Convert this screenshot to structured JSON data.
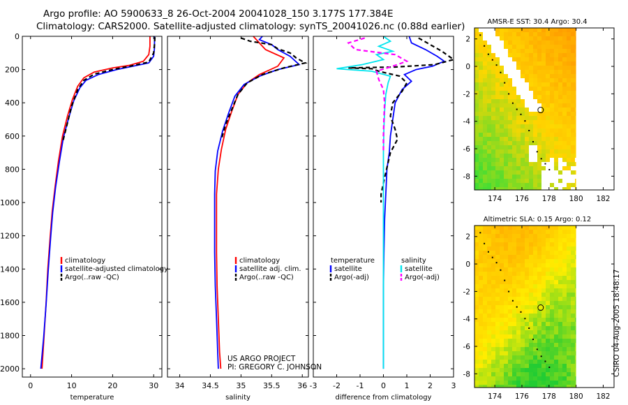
{
  "header": {
    "line1": "Argo profile: AO 5900633_8 26-Oct-2004 20041028_150 3.177S 177.384E",
    "line2": "Climatology: CARS2000. Satellite-adjusted climatology: synTS_20041026.nc (0.88d earlier)"
  },
  "credit": {
    "project": "US ARGO PROJECT",
    "pi": "PI: GREGORY C. JOHNSON"
  },
  "side_label": "CSIRO 04-Aug-2005 18:48:17",
  "colors": {
    "climatology": "#ff0000",
    "satellite": "#0000ff",
    "argo": "#000000",
    "salinity_satellite": "#00e5ee",
    "salinity_argo": "#ff00ff"
  },
  "chart_data": [
    {
      "type": "line",
      "id": "temperature",
      "xlabel": "temperature",
      "ylabel": "",
      "xlim": [
        -2,
        32
      ],
      "ylim": [
        2050,
        0
      ],
      "xticks": [
        0,
        10,
        20,
        30
      ],
      "yticks": [
        0,
        200,
        400,
        600,
        800,
        1000,
        1200,
        1400,
        1600,
        1800,
        2000
      ],
      "legend": [
        "climatology",
        "satellite-adjusted climatology",
        "Argo(..raw -QC)"
      ],
      "series": [
        {
          "name": "climatology",
          "color": "#ff0000",
          "dash": false,
          "points": [
            [
              29.1,
              0
            ],
            [
              29.1,
              60
            ],
            [
              28.8,
              110
            ],
            [
              27.5,
              150
            ],
            [
              24,
              175
            ],
            [
              20,
              190
            ],
            [
              15.5,
              215
            ],
            [
              13,
              250
            ],
            [
              11.5,
              300
            ],
            [
              10.2,
              380
            ],
            [
              9,
              480
            ],
            [
              7.8,
              600
            ],
            [
              6.8,
              750
            ],
            [
              6,
              900
            ],
            [
              5.3,
              1050
            ],
            [
              4.8,
              1200
            ],
            [
              4.2,
              1400
            ],
            [
              3.8,
              1600
            ],
            [
              3.3,
              1800
            ],
            [
              2.8,
              2000
            ]
          ]
        },
        {
          "name": "satellite-adjusted climatology",
          "color": "#0000ff",
          "dash": false,
          "points": [
            [
              30.2,
              0
            ],
            [
              30.2,
              70
            ],
            [
              30,
              120
            ],
            [
              28.8,
              160
            ],
            [
              25,
              180
            ],
            [
              21,
              200
            ],
            [
              16.5,
              230
            ],
            [
              13.5,
              265
            ],
            [
              12,
              310
            ],
            [
              10.5,
              390
            ],
            [
              9.3,
              490
            ],
            [
              8,
              610
            ],
            [
              7,
              760
            ],
            [
              6.1,
              910
            ],
            [
              5.4,
              1060
            ],
            [
              4.9,
              1210
            ],
            [
              4.3,
              1410
            ],
            [
              3.8,
              1610
            ],
            [
              3.2,
              1810
            ],
            [
              2.5,
              2000
            ]
          ]
        },
        {
          "name": "Argo(..raw -QC)",
          "color": "#000000",
          "dash": true,
          "points": [
            [
              30.3,
              5
            ],
            [
              30.2,
              50
            ],
            [
              30,
              100
            ],
            [
              28.8,
              155
            ],
            [
              24.5,
              178
            ],
            [
              20,
              200
            ],
            [
              15.5,
              228
            ],
            [
              13,
              265
            ],
            [
              11.5,
              320
            ],
            [
              10,
              420
            ],
            [
              9,
              520
            ],
            [
              7.8,
              640
            ]
          ]
        }
      ]
    },
    {
      "type": "line",
      "id": "salinity",
      "xlabel": "salinity",
      "ylabel": "",
      "xlim": [
        33.8,
        36.1
      ],
      "ylim": [
        2050,
        0
      ],
      "xticks": [
        34,
        34.5,
        35,
        35.5,
        36
      ],
      "legend": [
        "climatology",
        "satellite adj. clim.",
        "Argo(..raw -QC)"
      ],
      "series": [
        {
          "name": "climatology",
          "color": "#ff0000",
          "dash": false,
          "points": [
            [
              35.2,
              0
            ],
            [
              35.3,
              40
            ],
            [
              35.4,
              80
            ],
            [
              35.7,
              130
            ],
            [
              35.6,
              180
            ],
            [
              35.3,
              230
            ],
            [
              35.1,
              280
            ],
            [
              34.95,
              350
            ],
            [
              34.85,
              450
            ],
            [
              34.75,
              560
            ],
            [
              34.68,
              680
            ],
            [
              34.63,
              800
            ],
            [
              34.6,
              950
            ],
            [
              34.6,
              1100
            ],
            [
              34.6,
              1300
            ],
            [
              34.61,
              1500
            ],
            [
              34.63,
              1700
            ],
            [
              34.65,
              1900
            ],
            [
              34.67,
              2000
            ]
          ]
        },
        {
          "name": "satellite adj. clim.",
          "color": "#0000ff",
          "dash": false,
          "points": [
            [
              35.35,
              0
            ],
            [
              35.3,
              20
            ],
            [
              35.5,
              50
            ],
            [
              35.6,
              80
            ],
            [
              35.8,
              120
            ],
            [
              35.95,
              170
            ],
            [
              35.6,
              200
            ],
            [
              35.3,
              240
            ],
            [
              35.05,
              290
            ],
            [
              34.9,
              360
            ],
            [
              34.8,
              460
            ],
            [
              34.7,
              570
            ],
            [
              34.62,
              690
            ],
            [
              34.58,
              810
            ],
            [
              34.57,
              950
            ],
            [
              34.57,
              1100
            ],
            [
              34.57,
              1300
            ],
            [
              34.58,
              1500
            ],
            [
              34.6,
              1700
            ],
            [
              34.62,
              1900
            ],
            [
              34.63,
              2000
            ]
          ]
        },
        {
          "name": "Argo(..raw -QC)",
          "color": "#000000",
          "dash": true,
          "points": [
            [
              35.0,
              10
            ],
            [
              35.15,
              30
            ],
            [
              35.5,
              50
            ],
            [
              35.6,
              75
            ],
            [
              35.8,
              100
            ],
            [
              35.9,
              130
            ],
            [
              36.05,
              160
            ],
            [
              35.7,
              190
            ],
            [
              35.35,
              230
            ],
            [
              35.1,
              280
            ],
            [
              34.95,
              350
            ],
            [
              34.85,
              440
            ],
            [
              34.75,
              530
            ],
            [
              34.68,
              620
            ]
          ]
        }
      ]
    },
    {
      "type": "line",
      "id": "difference",
      "xlabel": "difference from climatology",
      "ylabel": "",
      "xlim": [
        -3,
        3
      ],
      "ylim": [
        2050,
        0
      ],
      "xticks": [
        -3,
        -2,
        -1,
        0,
        1,
        2,
        3
      ],
      "legend": [
        "temperature",
        "satellite",
        "Argo(-adj)",
        "salinity",
        "satellite",
        "Argo(-adj)"
      ],
      "series": [
        {
          "name": "temperature satellite",
          "color": "#0000ff",
          "dash": false,
          "points": [
            [
              1.1,
              0
            ],
            [
              1.2,
              40
            ],
            [
              1.8,
              80
            ],
            [
              2.3,
              120
            ],
            [
              2.6,
              150
            ],
            [
              2.1,
              180
            ],
            [
              1.4,
              200
            ],
            [
              0.9,
              230
            ],
            [
              1.2,
              270
            ],
            [
              0.8,
              320
            ],
            [
              0.5,
              400
            ],
            [
              0.4,
              500
            ],
            [
              0.3,
              600
            ],
            [
              0.25,
              700
            ],
            [
              0.15,
              800
            ],
            [
              0.1,
              950
            ],
            [
              0.05,
              1100
            ],
            [
              0.02,
              1300
            ],
            [
              0,
              1500
            ],
            [
              0,
              1700
            ],
            [
              0,
              1900
            ],
            [
              0,
              2000
            ]
          ]
        },
        {
          "name": "temperature Argo(-adj)",
          "color": "#000000",
          "dash": true,
          "points": [
            [
              1.5,
              10
            ],
            [
              2.0,
              50
            ],
            [
              2.5,
              90
            ],
            [
              3,
              140
            ],
            [
              2.2,
              170
            ],
            [
              0.5,
              185
            ],
            [
              -1.5,
              190
            ],
            [
              -0.5,
              195
            ],
            [
              -0.2,
              210
            ],
            [
              0.7,
              240
            ],
            [
              1,
              280
            ],
            [
              0.8,
              330
            ],
            [
              0.4,
              400
            ],
            [
              0.3,
              480
            ],
            [
              0.5,
              560
            ],
            [
              0.6,
              620
            ],
            [
              0.3,
              700
            ],
            [
              0.2,
              760
            ],
            [
              0.05,
              850
            ],
            [
              -0.1,
              950
            ],
            [
              -0.1,
              1000
            ]
          ]
        },
        {
          "name": "salinity satellite",
          "color": "#00e5ee",
          "dash": false,
          "points": [
            [
              0,
              0
            ],
            [
              0.3,
              30
            ],
            [
              -0.2,
              60
            ],
            [
              0.4,
              90
            ],
            [
              -0.3,
              110
            ],
            [
              0,
              140
            ],
            [
              -0.9,
              170
            ],
            [
              -2,
              195
            ],
            [
              -0.5,
              210
            ],
            [
              0.3,
              240
            ],
            [
              0.2,
              280
            ],
            [
              0.1,
              350
            ],
            [
              0.05,
              450
            ],
            [
              0.02,
              550
            ],
            [
              0,
              700
            ],
            [
              0,
              900
            ],
            [
              0,
              1100
            ],
            [
              0,
              1300
            ],
            [
              0,
              1500
            ],
            [
              0,
              1700
            ],
            [
              0,
              1900
            ],
            [
              0,
              2000
            ]
          ]
        },
        {
          "name": "salinity Argo(-adj)",
          "color": "#ff00ff",
          "dash": true,
          "points": [
            [
              -0.8,
              10
            ],
            [
              -1.5,
              40
            ],
            [
              -1.2,
              80
            ],
            [
              0.5,
              110
            ],
            [
              1,
              150
            ],
            [
              0.4,
              180
            ],
            [
              -0.3,
              210
            ],
            [
              -0.2,
              260
            ],
            [
              0,
              320
            ],
            [
              0.05,
              400
            ],
            [
              0.02,
              500
            ],
            [
              0,
              600
            ],
            [
              0,
              700
            ]
          ]
        }
      ]
    },
    {
      "type": "heatmap",
      "id": "sst-map",
      "title": "AMSR-E SST: 30.4 Argo: 30.4",
      "xlim": [
        172.5,
        182.8
      ],
      "ylim": [
        -9,
        2.8
      ],
      "xticks": [
        174,
        176,
        178,
        180,
        182
      ],
      "yticks": [
        -8,
        -6,
        -4,
        -2,
        0,
        2
      ],
      "data_lon_range": [
        172.5,
        180
      ],
      "data_lat_range": [
        -9,
        2.8
      ],
      "argo_location": [
        177.384,
        -3.177
      ],
      "colors": {
        "hot": "#ff9900",
        "mid": "#ffd700",
        "cool": "#44dd33"
      }
    },
    {
      "type": "heatmap",
      "id": "sla-map",
      "title": "Altimetric SLA: 0.15 Argo: 0.12",
      "xlim": [
        172.5,
        182.8
      ],
      "ylim": [
        -9,
        2.8
      ],
      "xticks": [
        174,
        176,
        178,
        180,
        182
      ],
      "yticks": [
        -8,
        -6,
        -4,
        -2,
        0,
        2
      ],
      "data_lon_range": [
        172.5,
        180
      ],
      "data_lat_range": [
        -9,
        2.8
      ],
      "argo_location": [
        177.384,
        -3.177
      ],
      "colors": {
        "hot": "#ffb400",
        "mid": "#ffee00",
        "cool": "#22cc33"
      }
    }
  ]
}
